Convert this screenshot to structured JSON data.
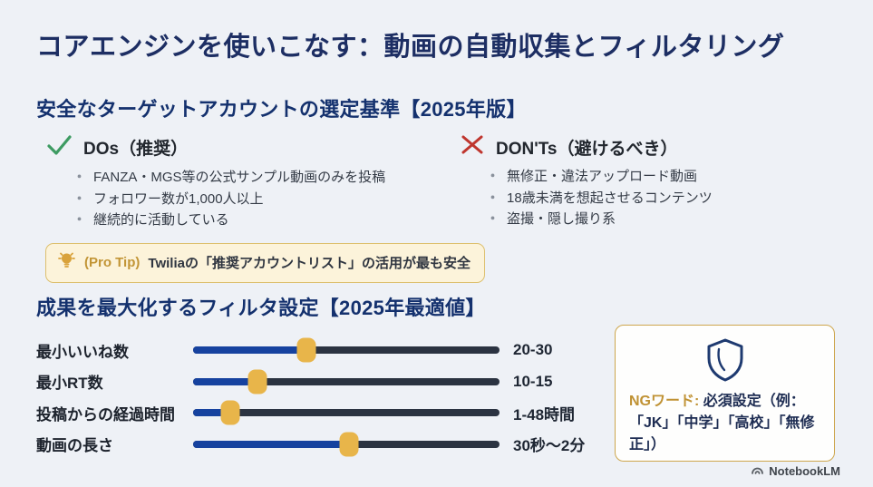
{
  "slide": {
    "title": "コアエンジンを使いこなす：動画の自動収集とフィルタリング"
  },
  "selection_criteria": {
    "heading": "安全なターゲットアカウントの選定基準【2025年版】",
    "dos": {
      "label": "DOs（推奨）",
      "items": [
        "FANZA・MGS等の公式サンプル動画のみを投稿",
        "フォロワー数が1,000人以上",
        "継続的に活動している"
      ]
    },
    "donts": {
      "label": "DON'Ts（避けるべき）",
      "items": [
        "無修正・違法アップロード動画",
        "18歳未満を想起させるコンテンツ",
        "盗撮・隠し撮り系"
      ]
    },
    "pro_tip": {
      "label": "(Pro Tip)",
      "text": "Twiliaの「推奨アカウントリスト」の活用が最も安全"
    }
  },
  "filter_settings": {
    "heading": "成果を最大化するフィルタ設定【2025年最適値】",
    "sliders": [
      {
        "label": "最小いいね数",
        "value": "20-30",
        "position_pct": 37
      },
      {
        "label": "最小RT数",
        "value": "10-15",
        "position_pct": 21
      },
      {
        "label": "投稿からの経過時間",
        "value": "1-48時間",
        "position_pct": 12
      },
      {
        "label": "動画の長さ",
        "value": "30秒〜2分",
        "position_pct": 51
      }
    ]
  },
  "ng_box": {
    "label": "NGワード:",
    "text": "必須設定（例：「JK」「中学」「高校」「無修正」）"
  },
  "footer": {
    "brand": "NotebookLM"
  },
  "bullet_glyph": "・",
  "colors": {
    "background": "#eef1f6",
    "title_navy": "#1d2e63",
    "heading_navy": "#14316e",
    "check_green": "#3d9b62",
    "cross_red": "#bf362e",
    "slider_blue": "#16429f",
    "slider_track_dark": "#2b3341",
    "thumb_gold": "#e8b54a",
    "tip_gold": "#c29536",
    "ng_border_gold": "#cda64d"
  }
}
